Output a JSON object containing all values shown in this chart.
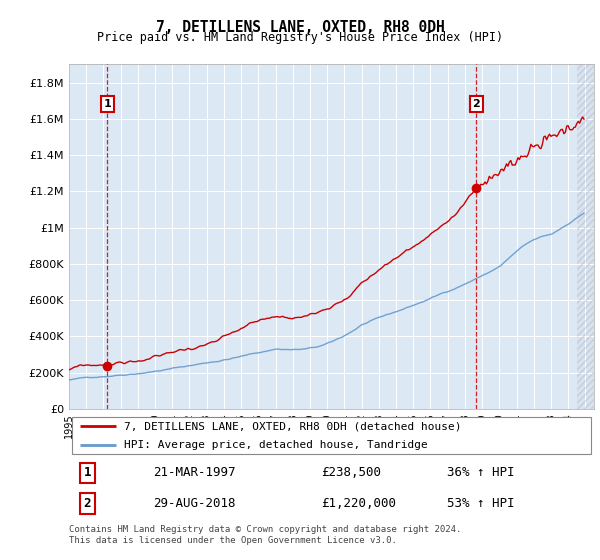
{
  "title": "7, DETILLENS LANE, OXTED, RH8 0DH",
  "subtitle": "Price paid vs. HM Land Registry's House Price Index (HPI)",
  "ylabel_numeric": [
    0,
    200000,
    400000,
    600000,
    800000,
    1000000,
    1200000,
    1400000,
    1600000,
    1800000
  ],
  "ylim": [
    0,
    1900000
  ],
  "xlim_start": 1995.0,
  "xlim_end": 2025.5,
  "marker1_x": 1997.22,
  "marker1_y": 238500,
  "marker2_x": 2018.66,
  "marker2_y": 1220000,
  "annotation1_date": "21-MAR-1997",
  "annotation1_price": "£238,500",
  "annotation1_hpi": "36% ↑ HPI",
  "annotation2_date": "29-AUG-2018",
  "annotation2_price": "£1,220,000",
  "annotation2_hpi": "53% ↑ HPI",
  "legend_line1": "7, DETILLENS LANE, OXTED, RH8 0DH (detached house)",
  "legend_line2": "HPI: Average price, detached house, Tandridge",
  "footer": "Contains HM Land Registry data © Crown copyright and database right 2024.\nThis data is licensed under the Open Government Licence v3.0.",
  "line_color_red": "#cc0000",
  "line_color_blue": "#6699cc",
  "plot_bg": "#dce9f5",
  "dashed_vline_color": "#cc0000",
  "marker_box_color": "#cc0000",
  "hatch_color": "#b0b8c8",
  "data_end_x": 2024.5
}
